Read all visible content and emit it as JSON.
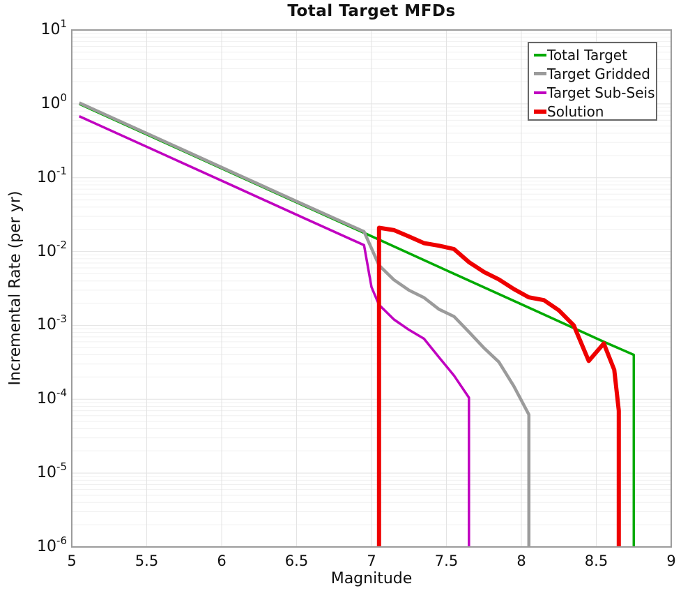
{
  "chart_data": {
    "type": "line",
    "title": "Total Target MFDs",
    "xlabel": "Magnitude",
    "ylabel": "Incremental Rate (per yr)",
    "x_axis": {
      "min": 5,
      "max": 9,
      "ticks": [
        5,
        5.5,
        6,
        6.5,
        7,
        7.5,
        8,
        8.5,
        9
      ],
      "tick_labels": [
        "5",
        "5.5",
        "6",
        "6.5",
        "7",
        "7.5",
        "8",
        "8.5",
        "9"
      ]
    },
    "y_axis": {
      "scale": "log",
      "min": 1e-06,
      "max": 10,
      "decade_exponents": [
        "1",
        "0",
        "-1",
        "-2",
        "-3",
        "-4",
        "-5",
        "-6"
      ]
    },
    "grid": {
      "vertical": true,
      "horizontal_minor": true,
      "minor_color": "#f0f0f0",
      "major_color": "#e3e3e3"
    },
    "axis_border_color": "#9c9c9c",
    "legend": {
      "position": "top-right",
      "entries": [
        "Total Target",
        "Target Gridded",
        "Target Sub-Seis",
        "Solution"
      ]
    },
    "series": [
      {
        "name": "Total Target",
        "color": "#00AA00",
        "width": 3.5,
        "drop_to_floor_at_end": true,
        "points": [
          [
            5.05,
            1.0
          ],
          [
            5.55,
            0.347
          ],
          [
            6.05,
            0.12
          ],
          [
            6.55,
            0.0417
          ],
          [
            7.05,
            0.0145
          ],
          [
            7.55,
            0.005
          ],
          [
            8.05,
            0.00174
          ],
          [
            8.55,
            0.0006
          ],
          [
            8.75,
            0.0004
          ]
        ]
      },
      {
        "name": "Target Gridded",
        "color": "#9B9B9B",
        "width": 4.5,
        "dy": -1.5,
        "drop_to_floor_at_end": true,
        "points": [
          [
            5.05,
            1.0
          ],
          [
            5.55,
            0.347
          ],
          [
            6.05,
            0.12
          ],
          [
            6.55,
            0.0417
          ],
          [
            6.95,
            0.018
          ],
          [
            7.05,
            0.0063
          ],
          [
            7.15,
            0.004
          ],
          [
            7.25,
            0.0029
          ],
          [
            7.35,
            0.0023
          ],
          [
            7.45,
            0.0016
          ],
          [
            7.55,
            0.00128
          ],
          [
            7.65,
            0.00079
          ],
          [
            7.75,
            0.00048
          ],
          [
            7.85,
            0.00031
          ],
          [
            7.95,
            0.000145
          ],
          [
            8.05,
            6e-05
          ]
        ]
      },
      {
        "name": "Target Sub-Seis",
        "color": "#C000C0",
        "width": 3.5,
        "drop_to_floor_at_end": true,
        "points": [
          [
            5.05,
            0.68
          ],
          [
            5.55,
            0.236
          ],
          [
            6.05,
            0.0819
          ],
          [
            6.55,
            0.0284
          ],
          [
            6.95,
            0.0122
          ],
          [
            7.0,
            0.0033
          ],
          [
            7.05,
            0.0019
          ],
          [
            7.15,
            0.0012
          ],
          [
            7.25,
            0.00087
          ],
          [
            7.35,
            0.00066
          ],
          [
            7.45,
            0.00037
          ],
          [
            7.55,
            0.00021
          ],
          [
            7.65,
            0.000105
          ]
        ]
      },
      {
        "name": "Solution",
        "color": "#EE0000",
        "width": 6,
        "rise_from_floor_at_start": true,
        "drop_to_floor_at_end": true,
        "points": [
          [
            7.05,
            0.021
          ],
          [
            7.15,
            0.0195
          ],
          [
            7.25,
            0.016
          ],
          [
            7.35,
            0.013
          ],
          [
            7.45,
            0.012
          ],
          [
            7.55,
            0.0108
          ],
          [
            7.65,
            0.0072
          ],
          [
            7.75,
            0.0053
          ],
          [
            7.85,
            0.0042
          ],
          [
            7.95,
            0.0031
          ],
          [
            8.05,
            0.0024
          ],
          [
            8.15,
            0.0022
          ],
          [
            8.25,
            0.0016
          ],
          [
            8.35,
            0.001
          ],
          [
            8.45,
            0.00033
          ],
          [
            8.55,
            0.00057
          ],
          [
            8.62,
            0.00025
          ],
          [
            8.65,
            7e-05
          ]
        ]
      }
    ]
  }
}
